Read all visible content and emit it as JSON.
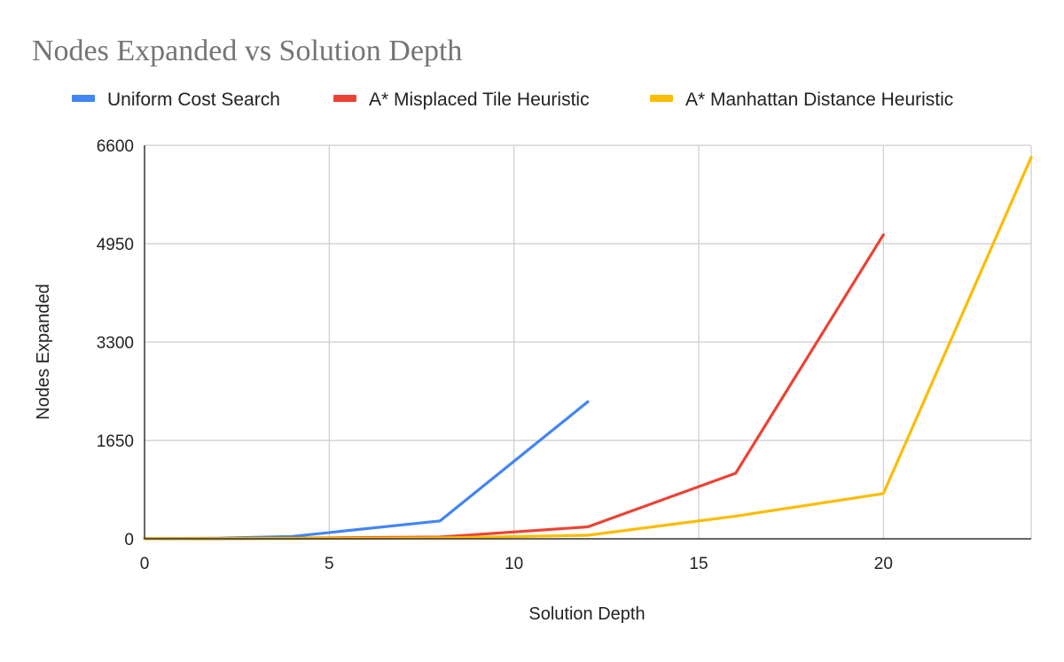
{
  "chart_data": {
    "type": "line",
    "title": "Nodes Expanded vs Solution Depth",
    "xlabel": "Solution Depth",
    "ylabel": "Nodes Expanded",
    "xlim": [
      0,
      24
    ],
    "ylim": [
      0,
      6600
    ],
    "x_ticks": [
      0,
      5,
      10,
      15,
      20
    ],
    "y_ticks": [
      0,
      1650,
      3300,
      4950,
      6600
    ],
    "grid": true,
    "legend_position": "top",
    "series": [
      {
        "name": "Uniform Cost Search",
        "color": "#4285F4",
        "x": [
          0,
          2,
          4,
          8,
          12
        ],
        "y": [
          1,
          10,
          40,
          300,
          2300
        ]
      },
      {
        "name": "A* Misplaced Tile Heuristic",
        "color": "#EA4335",
        "x": [
          0,
          2,
          4,
          8,
          12,
          16,
          20
        ],
        "y": [
          1,
          3,
          10,
          30,
          200,
          1100,
          5100
        ]
      },
      {
        "name": "A* Manhattan Distance Heuristic",
        "color": "#FBBC04",
        "x": [
          0,
          2,
          4,
          8,
          12,
          16,
          20,
          24
        ],
        "y": [
          1,
          3,
          6,
          15,
          60,
          380,
          760,
          6400
        ]
      }
    ]
  }
}
